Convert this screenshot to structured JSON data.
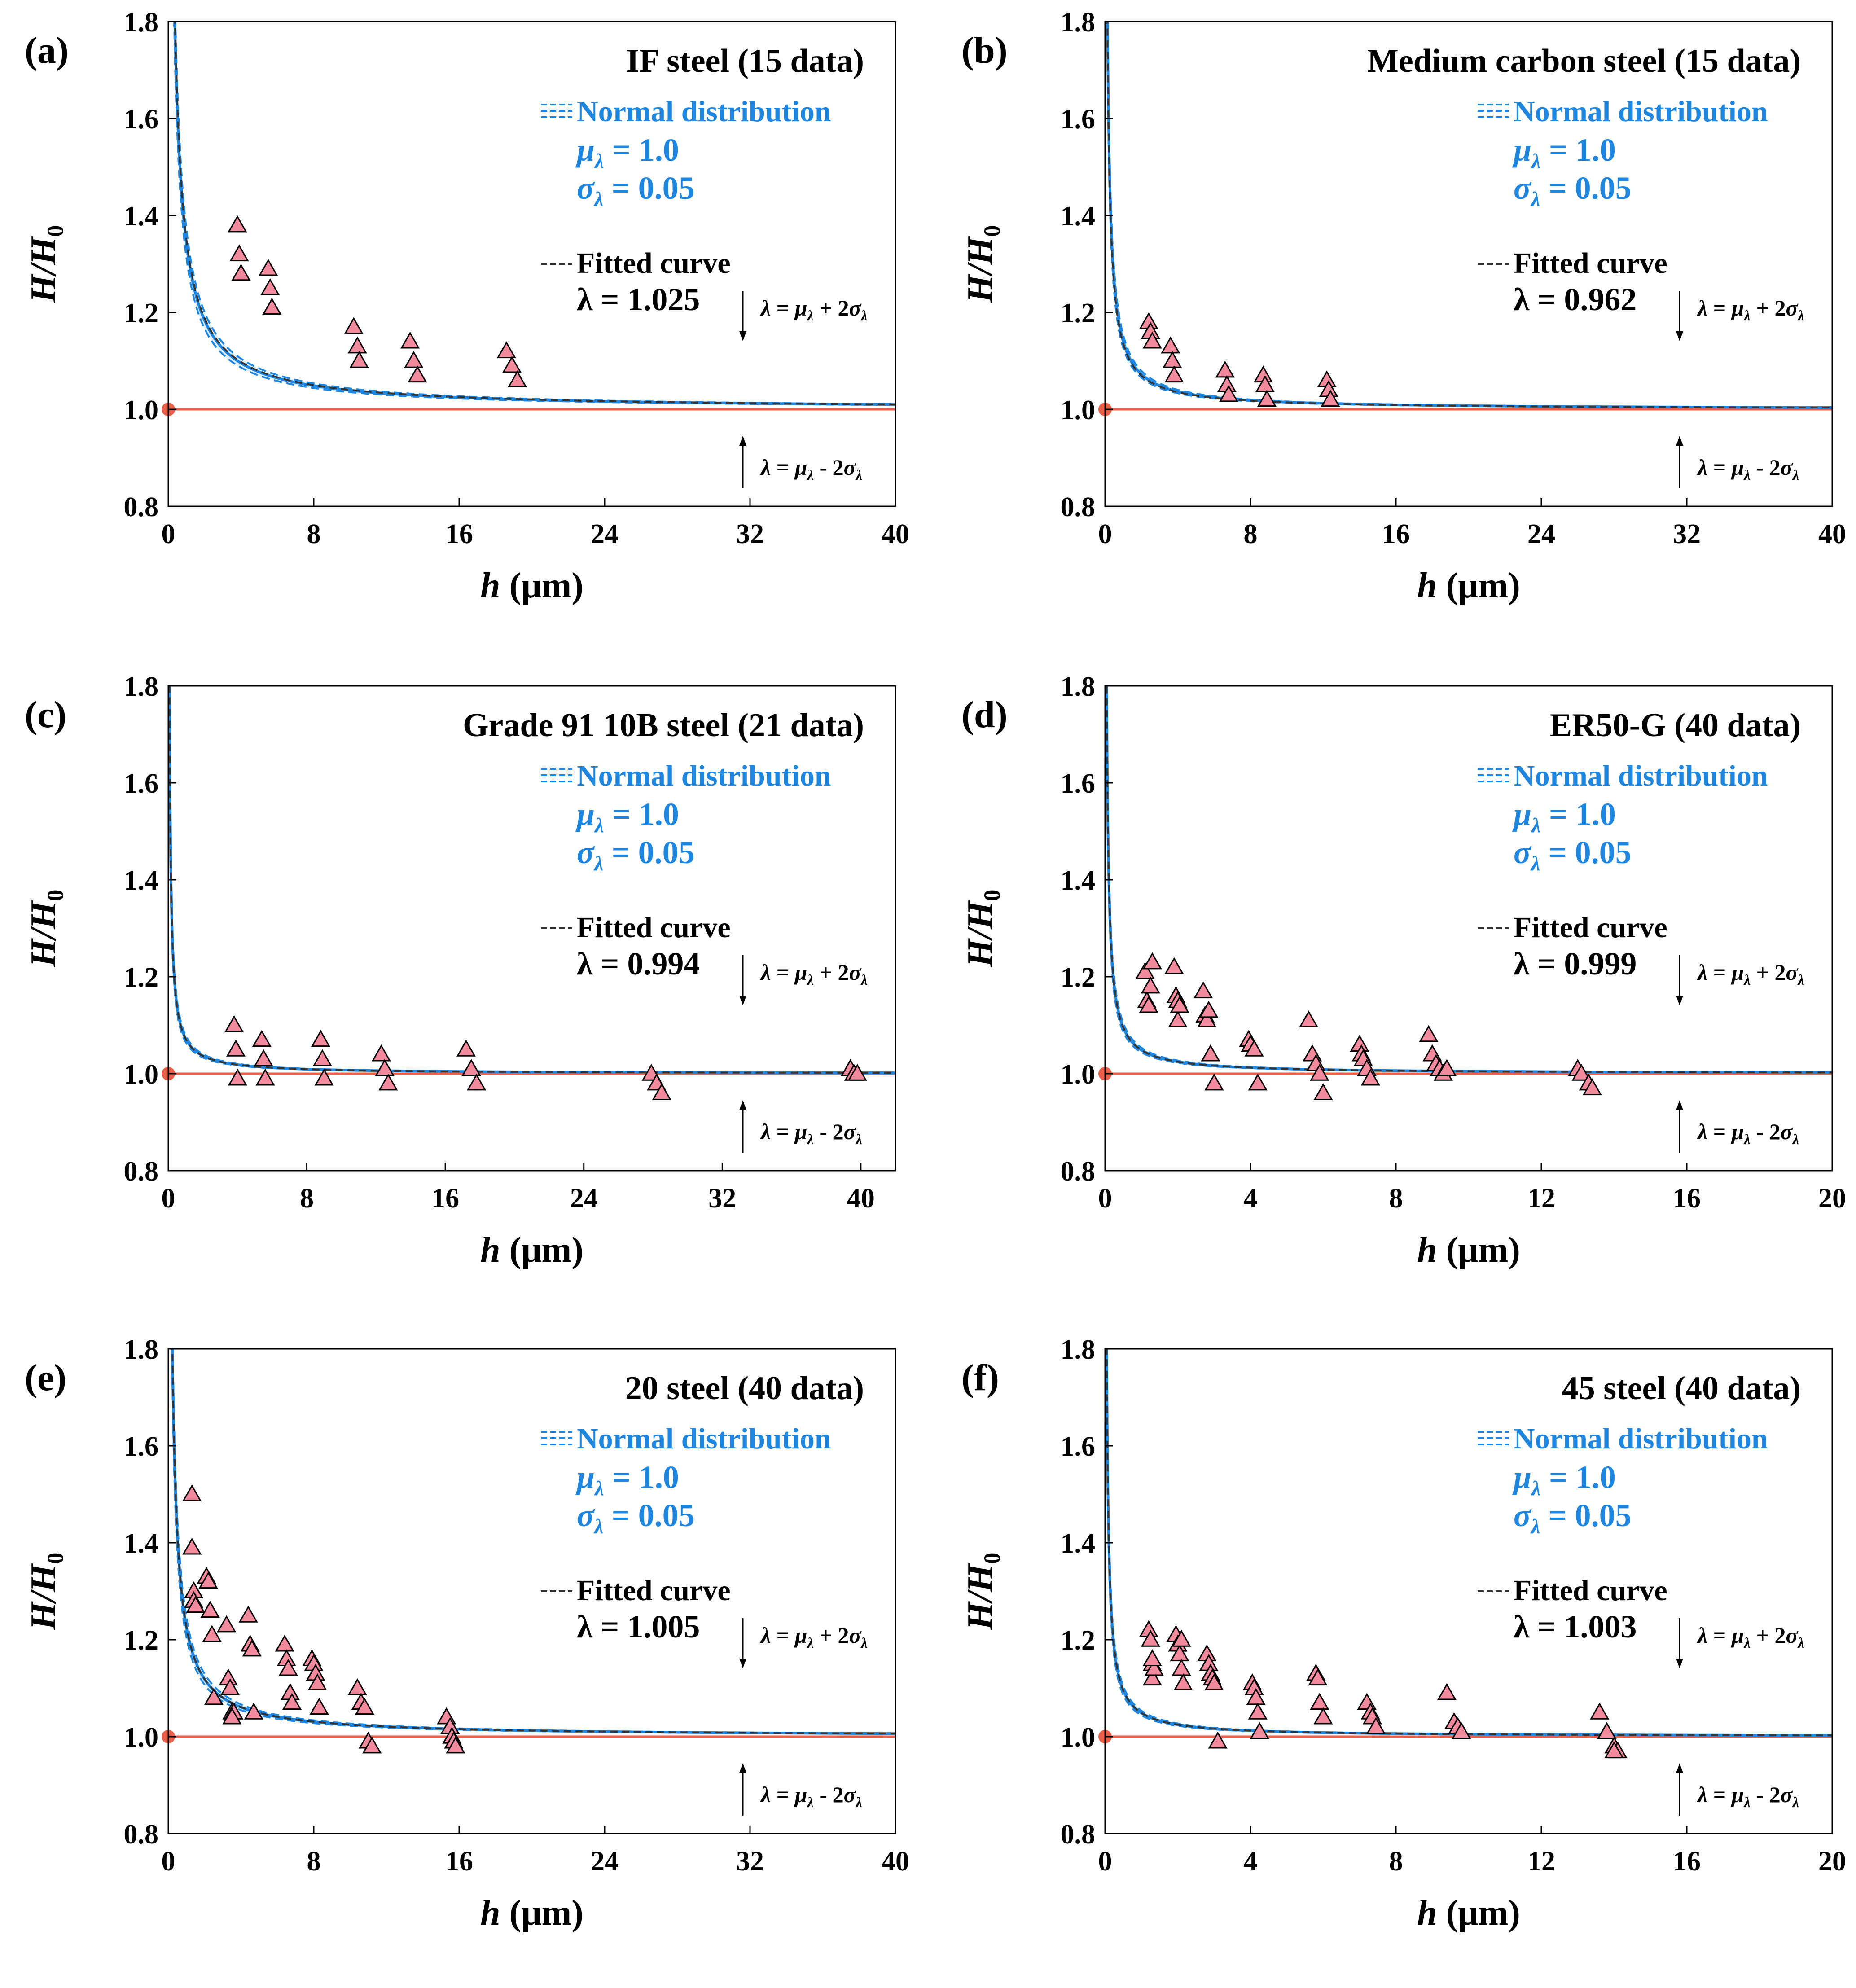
{
  "figure": {
    "x_label": "h (μm)",
    "y_label": "H/H0",
    "legend_normal": "Normal distribution",
    "legend_mu": "μλ = 1.0",
    "legend_sigma": "σλ = 0.05",
    "legend_fitted": "Fitted curve",
    "upper_band_label": "λ = μλ + 2σλ",
    "lower_band_label": "λ = μλ - 2σλ",
    "colors": {
      "band_fill": "#dbeefb",
      "band_line": "#1f86e0",
      "mean_line": "#1f86e0",
      "fitted_line": "#333333",
      "reference_line": "#e8604a",
      "marker_fill": "#f08a9c",
      "marker_stroke": "#000000",
      "legend_text": "#1f86e0",
      "text": "#000000"
    }
  },
  "chart_data": [
    {
      "panel": "(a)",
      "type": "scatter",
      "title": "IF steel (15 data)",
      "fitted_lambda": "λ = 1.025",
      "xlabel": "h (μm)",
      "ylabel": "H/H0",
      "xlim": [
        0,
        40
      ],
      "ylim": [
        0.8,
        1.8
      ],
      "xticks": [
        0,
        8,
        16,
        24,
        32,
        40
      ],
      "yticks": [
        0.8,
        1.0,
        1.2,
        1.4,
        1.6,
        1.8
      ],
      "curve_l0": 0.8,
      "mu_lambda": 1.0,
      "sigma_lambda": 0.05,
      "fitted_lambda_value": 1.025,
      "x": [
        3.8,
        3.9,
        4.0,
        5.5,
        5.6,
        5.7,
        10.2,
        10.4,
        10.5,
        13.3,
        13.5,
        13.7,
        18.6,
        18.9,
        19.2
      ],
      "y": [
        1.38,
        1.32,
        1.28,
        1.29,
        1.25,
        1.21,
        1.17,
        1.13,
        1.1,
        1.14,
        1.1,
        1.07,
        1.12,
        1.09,
        1.06
      ]
    },
    {
      "panel": "(b)",
      "type": "scatter",
      "title": "Medium carbon steel (15 data)",
      "fitted_lambda": "λ = 0.962",
      "xlabel": "h (μm)",
      "ylabel": "H/H0",
      "xlim": [
        0,
        40
      ],
      "ylim": [
        0.8,
        1.8
      ],
      "xticks": [
        0,
        8,
        16,
        24,
        32,
        40
      ],
      "yticks": [
        0.8,
        1.0,
        1.2,
        1.4,
        1.6,
        1.8
      ],
      "curve_l0": 0.3,
      "mu_lambda": 1.0,
      "sigma_lambda": 0.05,
      "fitted_lambda_value": 0.962,
      "x": [
        2.4,
        2.5,
        2.6,
        3.6,
        3.7,
        3.8,
        6.6,
        6.7,
        6.8,
        8.7,
        8.8,
        8.9,
        12.2,
        12.3,
        12.4
      ],
      "y": [
        1.18,
        1.16,
        1.14,
        1.13,
        1.1,
        1.07,
        1.08,
        1.05,
        1.03,
        1.07,
        1.05,
        1.02,
        1.06,
        1.04,
        1.02
      ]
    },
    {
      "panel": "(c)",
      "type": "scatter",
      "title": "Grade 91 10B steel (21 data)",
      "fitted_lambda": "λ = 0.994",
      "xlabel": "h (μm)",
      "ylabel": "H/H0",
      "xlim": [
        0,
        42
      ],
      "ylim": [
        0.8,
        1.8
      ],
      "xticks": [
        0,
        8,
        16,
        24,
        32,
        40
      ],
      "yticks": [
        0.8,
        1.0,
        1.2,
        1.4,
        1.6,
        1.8
      ],
      "curve_l0": 0.15,
      "mu_lambda": 1.0,
      "sigma_lambda": 0.05,
      "fitted_lambda_value": 0.994,
      "x": [
        3.8,
        3.9,
        4.0,
        5.4,
        5.5,
        5.6,
        8.8,
        8.9,
        9.0,
        12.3,
        12.5,
        12.7,
        17.2,
        17.5,
        17.8,
        27.9,
        28.2,
        28.5,
        39.4,
        39.6,
        39.8
      ],
      "y": [
        1.1,
        1.05,
        0.99,
        1.07,
        1.03,
        0.99,
        1.07,
        1.03,
        0.99,
        1.04,
        1.01,
        0.98,
        1.05,
        1.01,
        0.98,
        1.0,
        0.98,
        0.96,
        1.01,
        1.0,
        1.0
      ]
    },
    {
      "panel": "(d)",
      "type": "scatter",
      "title": "ER50-G (40 data)",
      "fitted_lambda": "λ = 0.999",
      "xlabel": "h (μm)",
      "ylabel": "H/H0",
      "xlim": [
        0,
        20
      ],
      "ylim": [
        0.8,
        1.8
      ],
      "xticks": [
        0,
        4,
        8,
        12,
        16,
        20
      ],
      "yticks": [
        0.8,
        1.0,
        1.2,
        1.4,
        1.6,
        1.8
      ],
      "curve_l0": 0.1,
      "mu_lambda": 1.0,
      "sigma_lambda": 0.05,
      "fitted_lambda_value": 0.999,
      "x": [
        1.1,
        1.15,
        1.2,
        1.3,
        1.9,
        1.95,
        2.0,
        2.0,
        2.7,
        2.75,
        2.8,
        2.9,
        3.0,
        3.95,
        4.0,
        4.1,
        4.2,
        5.6,
        5.7,
        5.8,
        5.9,
        6.0,
        7.0,
        7.05,
        7.1,
        7.2,
        7.3,
        8.9,
        9.0,
        9.1,
        9.2,
        9.3,
        9.4,
        13.0,
        13.1,
        13.3,
        13.4,
        1.25,
        2.05,
        2.85
      ],
      "y": [
        1.21,
        1.15,
        1.14,
        1.23,
        1.22,
        1.16,
        1.15,
        1.11,
        1.17,
        1.12,
        1.11,
        1.04,
        0.98,
        1.07,
        1.06,
        1.05,
        0.98,
        1.11,
        1.04,
        1.02,
        1.0,
        0.96,
        1.06,
        1.04,
        1.03,
        1.01,
        0.99,
        1.08,
        1.04,
        1.02,
        1.01,
        1.0,
        1.01,
        1.01,
        1.0,
        0.98,
        0.97,
        1.18,
        1.14,
        1.13
      ]
    },
    {
      "panel": "(e)",
      "type": "scatter",
      "title": "20 steel (40 data)",
      "fitted_lambda": "λ = 1.005",
      "xlabel": "h (μm)",
      "ylabel": "H/H0",
      "xlim": [
        0,
        40
      ],
      "ylim": [
        0.8,
        1.8
      ],
      "xticks": [
        0,
        8,
        16,
        24,
        32,
        40
      ],
      "yticks": [
        0.8,
        1.0,
        1.2,
        1.4,
        1.6,
        1.8
      ],
      "curve_l0": 0.5,
      "mu_lambda": 1.0,
      "sigma_lambda": 0.05,
      "fitted_lambda_value": 1.005,
      "x": [
        1.3,
        1.3,
        1.4,
        1.4,
        1.5,
        2.1,
        2.2,
        2.3,
        2.4,
        2.5,
        3.2,
        3.3,
        3.4,
        3.5,
        3.6,
        4.4,
        4.5,
        4.6,
        4.7,
        6.4,
        6.5,
        6.6,
        6.7,
        6.8,
        7.9,
        8.0,
        8.1,
        8.2,
        8.3,
        10.4,
        10.6,
        10.8,
        11.0,
        11.2,
        15.3,
        15.5,
        15.6,
        15.7,
        15.8,
        3.5
      ],
      "y": [
        1.5,
        1.39,
        1.3,
        1.28,
        1.27,
        1.33,
        1.32,
        1.26,
        1.21,
        1.08,
        1.23,
        1.12,
        1.1,
        1.05,
        1.05,
        1.25,
        1.19,
        1.18,
        1.05,
        1.19,
        1.16,
        1.14,
        1.09,
        1.07,
        1.16,
        1.15,
        1.13,
        1.11,
        1.06,
        1.1,
        1.07,
        1.06,
        0.99,
        0.98,
        1.04,
        1.02,
        1.0,
        0.99,
        0.98,
        1.04
      ]
    },
    {
      "panel": "(f)",
      "type": "scatter",
      "title": "45 steel (40 data)",
      "fitted_lambda": "λ = 1.003",
      "xlabel": "h (μm)",
      "ylabel": "H/H0",
      "xlim": [
        0,
        20
      ],
      "ylim": [
        0.8,
        1.8
      ],
      "xticks": [
        0,
        4,
        8,
        12,
        16,
        20
      ],
      "yticks": [
        0.8,
        1.0,
        1.2,
        1.4,
        1.6,
        1.8
      ],
      "curve_l0": 0.1,
      "mu_lambda": 1.0,
      "sigma_lambda": 0.05,
      "fitted_lambda_value": 1.003,
      "x": [
        1.2,
        1.25,
        1.3,
        1.3,
        1.35,
        1.95,
        2.0,
        2.05,
        2.1,
        2.15,
        2.8,
        2.85,
        2.9,
        2.95,
        3.0,
        3.1,
        4.05,
        4.1,
        4.15,
        4.2,
        4.25,
        5.8,
        5.85,
        5.9,
        6.0,
        7.2,
        7.3,
        7.35,
        7.45,
        9.4,
        9.6,
        9.7,
        9.8,
        13.6,
        13.8,
        14.0,
        14.1,
        14.0,
        1.3,
        2.1
      ],
      "y": [
        1.22,
        1.2,
        1.15,
        1.12,
        1.14,
        1.21,
        1.19,
        1.17,
        1.14,
        1.11,
        1.17,
        1.15,
        1.13,
        1.12,
        1.11,
        0.99,
        1.11,
        1.1,
        1.08,
        1.05,
        1.01,
        1.13,
        1.12,
        1.07,
        1.04,
        1.07,
        1.05,
        1.04,
        1.02,
        1.09,
        1.03,
        1.02,
        1.01,
        1.05,
        1.01,
        0.98,
        0.97,
        0.97,
        1.16,
        1.2
      ]
    }
  ]
}
